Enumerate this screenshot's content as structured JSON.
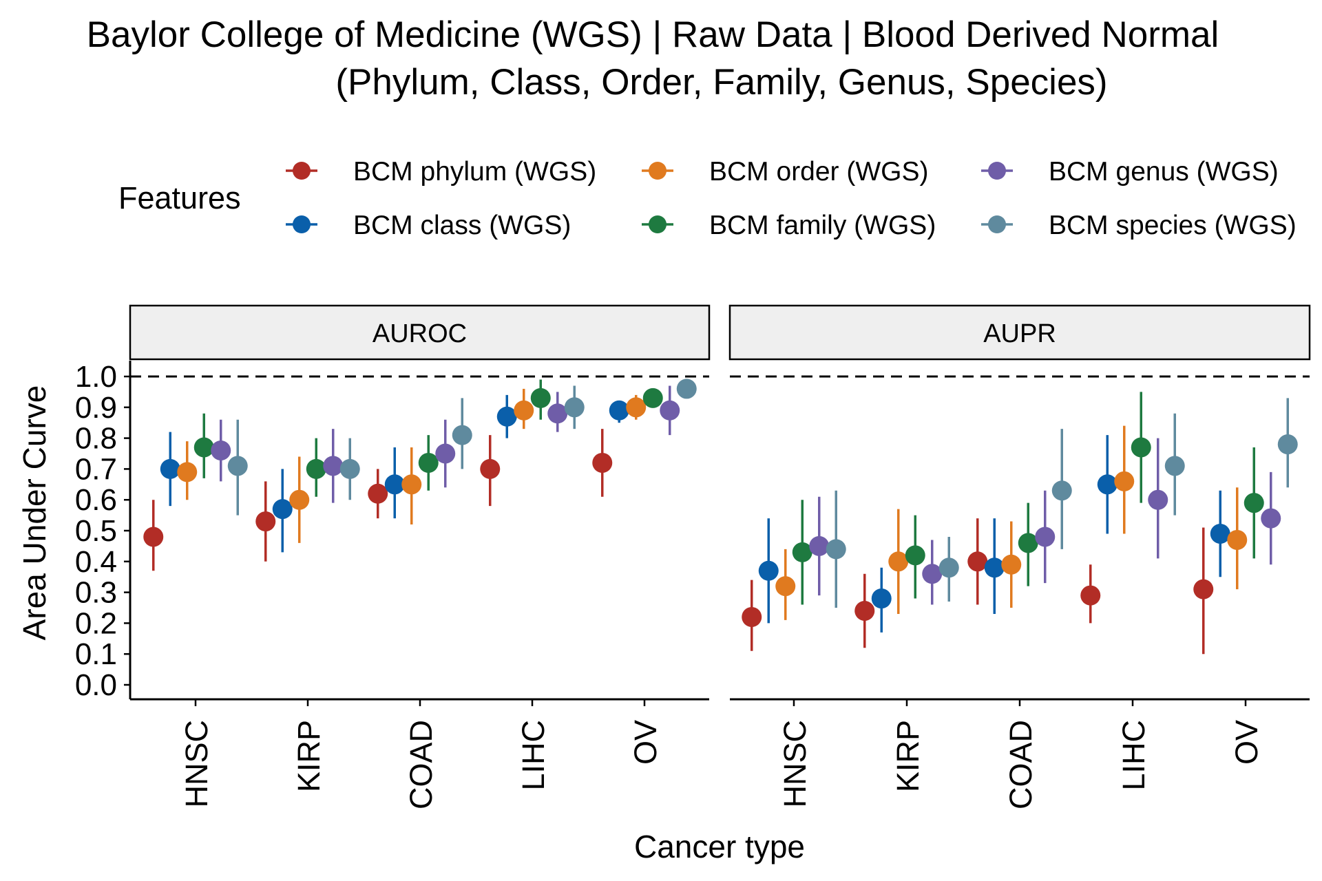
{
  "title_line1": "Baylor College of Medicine (WGS) | Raw Data | Blood Derived Normal",
  "title_line2": "(Phylum, Class, Order, Family, Genus, Species)",
  "legend": {
    "title": "Features",
    "position": "top",
    "items": [
      {
        "label": "BCM phylum (WGS)",
        "color": "#B22D26"
      },
      {
        "label": "BCM class (WGS)",
        "color": "#0A5FAA"
      },
      {
        "label": "BCM order (WGS)",
        "color": "#E07A1F"
      },
      {
        "label": "BCM family (WGS)",
        "color": "#1E7A40"
      },
      {
        "label": "BCM genus (WGS)",
        "color": "#6F5DA8"
      },
      {
        "label": "BCM species (WGS)",
        "color": "#5F8A9E"
      }
    ]
  },
  "chart_data": {
    "type": "scatter",
    "subtype": "pointrange",
    "xlabel": "Cancer type",
    "ylabel": "Area Under Curve",
    "ylim": [
      0,
      1
    ],
    "yticks": [
      "0.0",
      "0.1",
      "0.2",
      "0.3",
      "0.4",
      "0.5",
      "0.6",
      "0.7",
      "0.8",
      "0.9",
      "1.0"
    ],
    "reference_line": {
      "y": 1.0,
      "style": "dashed"
    },
    "grid": false,
    "categories": [
      "HNSC",
      "KIRP",
      "COAD",
      "LIHC",
      "OV"
    ],
    "facets": [
      {
        "label": "AUROC",
        "series": [
          {
            "name": "BCM phylum (WGS)",
            "values": [
              0.48,
              0.53,
              0.62,
              0.7,
              0.72
            ],
            "lower": [
              0.37,
              0.4,
              0.54,
              0.58,
              0.61
            ],
            "upper": [
              0.6,
              0.66,
              0.7,
              0.81,
              0.83
            ]
          },
          {
            "name": "BCM class (WGS)",
            "values": [
              0.7,
              0.57,
              0.65,
              0.87,
              0.89
            ],
            "lower": [
              0.58,
              0.43,
              0.54,
              0.8,
              0.85
            ],
            "upper": [
              0.82,
              0.7,
              0.77,
              0.94,
              0.92
            ]
          },
          {
            "name": "BCM order (WGS)",
            "values": [
              0.69,
              0.6,
              0.65,
              0.89,
              0.9
            ],
            "lower": [
              0.6,
              0.46,
              0.52,
              0.83,
              0.86
            ],
            "upper": [
              0.79,
              0.74,
              0.77,
              0.96,
              0.94
            ]
          },
          {
            "name": "BCM family (WGS)",
            "values": [
              0.77,
              0.7,
              0.72,
              0.93,
              0.93
            ],
            "lower": [
              0.67,
              0.61,
              0.63,
              0.86,
              0.9
            ],
            "upper": [
              0.88,
              0.8,
              0.81,
              0.99,
              0.96
            ]
          },
          {
            "name": "BCM genus (WGS)",
            "values": [
              0.76,
              0.71,
              0.75,
              0.88,
              0.89
            ],
            "lower": [
              0.66,
              0.59,
              0.64,
              0.82,
              0.81
            ],
            "upper": [
              0.86,
              0.83,
              0.86,
              0.95,
              0.97
            ]
          },
          {
            "name": "BCM species (WGS)",
            "values": [
              0.71,
              0.7,
              0.81,
              0.9,
              0.96
            ],
            "lower": [
              0.55,
              0.6,
              0.7,
              0.83,
              0.94
            ],
            "upper": [
              0.86,
              0.8,
              0.93,
              0.97,
              0.98
            ]
          }
        ]
      },
      {
        "label": "AUPR",
        "series": [
          {
            "name": "BCM phylum (WGS)",
            "values": [
              0.22,
              0.24,
              0.4,
              0.29,
              0.31
            ],
            "lower": [
              0.11,
              0.12,
              0.26,
              0.2,
              0.1
            ],
            "upper": [
              0.34,
              0.36,
              0.54,
              0.39,
              0.51
            ]
          },
          {
            "name": "BCM class (WGS)",
            "values": [
              0.37,
              0.28,
              0.38,
              0.65,
              0.49
            ],
            "lower": [
              0.2,
              0.17,
              0.23,
              0.49,
              0.35
            ],
            "upper": [
              0.54,
              0.38,
              0.54,
              0.81,
              0.63
            ]
          },
          {
            "name": "BCM order (WGS)",
            "values": [
              0.32,
              0.4,
              0.39,
              0.66,
              0.47
            ],
            "lower": [
              0.21,
              0.23,
              0.25,
              0.49,
              0.31
            ],
            "upper": [
              0.44,
              0.57,
              0.53,
              0.84,
              0.64
            ]
          },
          {
            "name": "BCM family (WGS)",
            "values": [
              0.43,
              0.42,
              0.46,
              0.77,
              0.59
            ],
            "lower": [
              0.26,
              0.28,
              0.32,
              0.59,
              0.41
            ],
            "upper": [
              0.6,
              0.55,
              0.59,
              0.95,
              0.77
            ]
          },
          {
            "name": "BCM genus (WGS)",
            "values": [
              0.45,
              0.36,
              0.48,
              0.6,
              0.54
            ],
            "lower": [
              0.29,
              0.26,
              0.33,
              0.41,
              0.39
            ],
            "upper": [
              0.61,
              0.47,
              0.63,
              0.8,
              0.69
            ]
          },
          {
            "name": "BCM species (WGS)",
            "values": [
              0.44,
              0.38,
              0.63,
              0.71,
              0.78
            ],
            "lower": [
              0.25,
              0.27,
              0.44,
              0.55,
              0.64
            ],
            "upper": [
              0.63,
              0.48,
              0.83,
              0.88,
              0.93
            ]
          }
        ]
      }
    ]
  }
}
